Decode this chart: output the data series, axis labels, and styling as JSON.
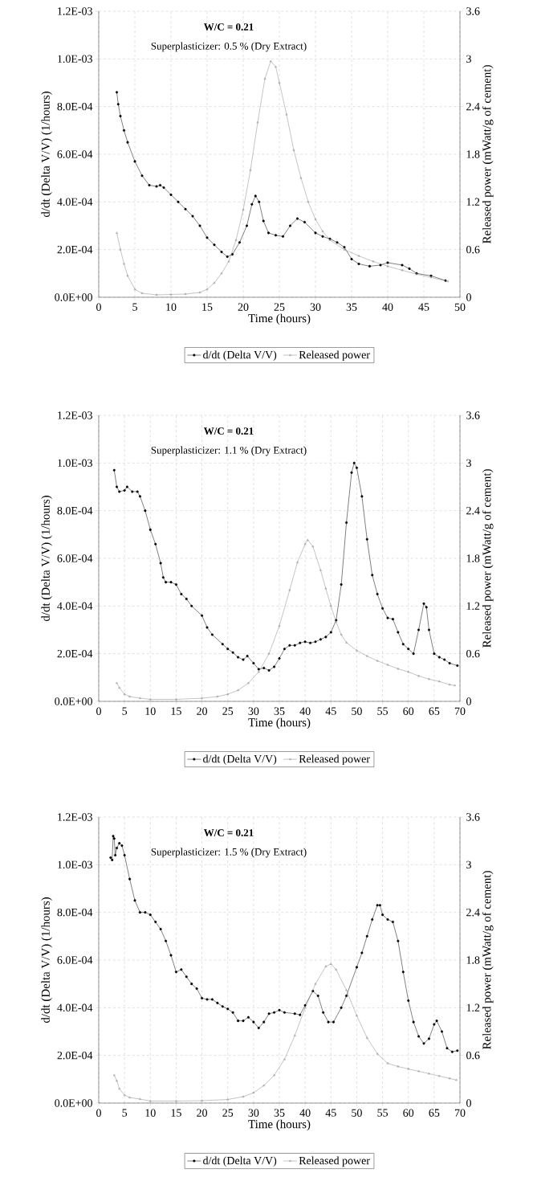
{
  "chart_data": [
    {
      "type": "line",
      "title": "W/C = 0.21",
      "subtitle": "Superplasticizer: 0.5 %  (Dry Extract)",
      "xlabel": "Time  (hours)",
      "ylabel": "d/dt (Delta V/V)  (1/hours)",
      "y2label": "Released power (mWatt/g of cement)",
      "xlim": [
        0,
        50
      ],
      "xticks": [
        0,
        5,
        10,
        15,
        20,
        25,
        30,
        35,
        40,
        45,
        50
      ],
      "ylim": [
        0,
        0.0012
      ],
      "yticks": [
        {
          "value": 0,
          "label": "0.0E+00"
        },
        {
          "value": 0.0002,
          "label": "2.0E-04"
        },
        {
          "value": 0.0004,
          "label": "4.0E-04"
        },
        {
          "value": 0.0006,
          "label": "6.0E-04"
        },
        {
          "value": 0.0008,
          "label": "8.0E-04"
        },
        {
          "value": 0.001,
          "label": "1.0E-03"
        },
        {
          "value": 0.0012,
          "label": "1.2E-03"
        }
      ],
      "y2lim": [
        0,
        3.6
      ],
      "y2ticks": [
        0,
        0.6,
        1.2,
        1.8,
        2.4,
        3,
        3.6
      ],
      "grid": true,
      "legend": "bottom",
      "series": [
        {
          "name": "d/dt (Delta V/V)",
          "color": "#000000",
          "marker": "circle",
          "x": [
            2.5,
            2.7,
            3,
            3.5,
            4,
            5,
            6,
            7,
            8,
            8.5,
            9,
            10,
            11,
            12,
            13,
            14,
            15,
            16,
            17,
            17.8,
            18.5,
            19.5,
            20.5,
            21.2,
            21.7,
            22.2,
            22.8,
            23.5,
            24.5,
            25.5,
            26.5,
            27.5,
            28.5,
            30,
            31,
            32,
            33,
            34,
            35,
            36,
            37.5,
            39,
            40,
            42,
            43,
            44,
            46,
            48
          ],
          "values": [
            0.00086,
            0.00081,
            0.00076,
            0.0007,
            0.00065,
            0.00057,
            0.00051,
            0.00047,
            0.000465,
            0.00047,
            0.00046,
            0.00043,
            0.0004,
            0.00037,
            0.00034,
            0.0003,
            0.00025,
            0.00022,
            0.00019,
            0.00017,
            0.00018,
            0.00023,
            0.0003,
            0.00039,
            0.000425,
            0.0004,
            0.00032,
            0.00027,
            0.00026,
            0.000255,
            0.0003,
            0.00033,
            0.000315,
            0.00027,
            0.000255,
            0.000245,
            0.00023,
            0.00021,
            0.00016,
            0.00014,
            0.00013,
            0.000135,
            0.000145,
            0.000135,
            0.00012,
            0.0001,
            9e-05,
            7e-05
          ]
        },
        {
          "name": "Released power",
          "color": "#888888",
          "marker": "triangle",
          "axis": "y2",
          "x": [
            2.5,
            3,
            3.5,
            4,
            5,
            6,
            8,
            10,
            12,
            14,
            15,
            16,
            17,
            18,
            19,
            20,
            21,
            22,
            23,
            23.8,
            24.5,
            25,
            26,
            27,
            28,
            29,
            30,
            31,
            32,
            34,
            36,
            38,
            40,
            42,
            44,
            46,
            48.3
          ],
          "values": [
            0.81,
            0.6,
            0.42,
            0.27,
            0.1,
            0.05,
            0.03,
            0.035,
            0.04,
            0.06,
            0.1,
            0.18,
            0.3,
            0.45,
            0.72,
            1.1,
            1.6,
            2.2,
            2.75,
            2.97,
            2.9,
            2.7,
            2.3,
            1.85,
            1.5,
            1.2,
            0.98,
            0.83,
            0.72,
            0.6,
            0.52,
            0.45,
            0.39,
            0.34,
            0.29,
            0.25,
            0.2
          ]
        }
      ]
    },
    {
      "type": "line",
      "title": "W/C = 0.21",
      "subtitle": "Superplasticizer: 1.1 %  (Dry Extract)",
      "xlabel": "Time  (hours)",
      "ylabel": "d/dt (Delta V/V)  (1/hours)",
      "y2label": "Released power (mWatt/g of cement)",
      "xlim": [
        0,
        70
      ],
      "xticks": [
        0,
        5,
        10,
        15,
        20,
        25,
        30,
        35,
        40,
        45,
        50,
        55,
        60,
        65,
        70
      ],
      "ylim": [
        0,
        0.0012
      ],
      "yticks": [
        {
          "value": 0,
          "label": "0.0E+00"
        },
        {
          "value": 0.0002,
          "label": "2.0E-04"
        },
        {
          "value": 0.0004,
          "label": "4.0E-04"
        },
        {
          "value": 0.0006,
          "label": "6.0E-04"
        },
        {
          "value": 0.0008,
          "label": "8.0E-04"
        },
        {
          "value": 0.001,
          "label": "1.0E-03"
        },
        {
          "value": 0.0012,
          "label": "1.2E-03"
        }
      ],
      "y2lim": [
        0,
        3.6
      ],
      "y2ticks": [
        0,
        0.6,
        1.2,
        1.8,
        2.4,
        3,
        3.6
      ],
      "grid": true,
      "legend": "bottom",
      "series": [
        {
          "name": "d/dt (Delta V/V)",
          "color": "#000000",
          "marker": "circle",
          "x": [
            3,
            3.5,
            4,
            5,
            5.5,
            6.5,
            7.5,
            8,
            9,
            10,
            11,
            12,
            12.5,
            13,
            14,
            15,
            16,
            17,
            18,
            20,
            21,
            22,
            24,
            25,
            26,
            27,
            28,
            28.8,
            30,
            31,
            32,
            33,
            34,
            35,
            36,
            37,
            38,
            39,
            40,
            41,
            42,
            43,
            44,
            45,
            46,
            47,
            48,
            49,
            49.5,
            50,
            51,
            52,
            53,
            54,
            55,
            56,
            57,
            58,
            59,
            60,
            61,
            62,
            63,
            63.5,
            64,
            65,
            66,
            67,
            68,
            69.5
          ],
          "values": [
            0.00097,
            0.0009,
            0.00088,
            0.000885,
            0.0009,
            0.00088,
            0.00088,
            0.00086,
            0.0008,
            0.00072,
            0.00066,
            0.00058,
            0.00052,
            0.0005,
            0.0005,
            0.00049,
            0.00045,
            0.00043,
            0.0004,
            0.00036,
            0.00031,
            0.00028,
            0.00024,
            0.00022,
            0.000205,
            0.000185,
            0.000175,
            0.00019,
            0.00016,
            0.000135,
            0.00014,
            0.00013,
            0.000145,
            0.00018,
            0.00022,
            0.000235,
            0.000235,
            0.000245,
            0.00025,
            0.000245,
            0.00025,
            0.00026,
            0.00027,
            0.00029,
            0.00034,
            0.00049,
            0.00075,
            0.00096,
            0.001,
            0.00098,
            0.00086,
            0.00068,
            0.00053,
            0.00045,
            0.00039,
            0.00035,
            0.000345,
            0.00029,
            0.00024,
            0.00022,
            0.0002,
            0.0003,
            0.00041,
            0.000395,
            0.0003,
            0.0002,
            0.000185,
            0.000175,
            0.00016,
            0.00015
          ]
        },
        {
          "name": "Released power",
          "color": "#888888",
          "marker": "triangle",
          "axis": "y2",
          "x": [
            3.5,
            4,
            5,
            6,
            8,
            10,
            15,
            20,
            23,
            25,
            27,
            29,
            31,
            33,
            35,
            37,
            38.5,
            40,
            40.5,
            41.5,
            43,
            44,
            45,
            46,
            47,
            48,
            50,
            52,
            54,
            56,
            58,
            60,
            62,
            64,
            66,
            68,
            69
          ],
          "values": [
            0.23,
            0.17,
            0.09,
            0.06,
            0.04,
            0.025,
            0.025,
            0.04,
            0.06,
            0.09,
            0.14,
            0.23,
            0.37,
            0.6,
            0.95,
            1.4,
            1.75,
            1.98,
            2.03,
            1.95,
            1.65,
            1.42,
            1.2,
            1.0,
            0.84,
            0.74,
            0.64,
            0.57,
            0.51,
            0.46,
            0.41,
            0.37,
            0.32,
            0.28,
            0.25,
            0.21,
            0.2
          ]
        }
      ]
    },
    {
      "type": "line",
      "title": "W/C = 0.21",
      "subtitle": "Superplasticizer: 1.5 %  (Dry Extract)",
      "xlabel": "Time  (hours)",
      "ylabel": "d/dt (Delta V/V)  (1/hours)",
      "y2label": "Released power (mWatt/g of cement)",
      "xlim": [
        0,
        70
      ],
      "xticks": [
        0,
        5,
        10,
        15,
        20,
        25,
        30,
        35,
        40,
        45,
        50,
        55,
        60,
        65,
        70
      ],
      "ylim": [
        0,
        0.0012
      ],
      "yticks": [
        {
          "value": 0,
          "label": "0.0E+00"
        },
        {
          "value": 0.0002,
          "label": "2.0E-04"
        },
        {
          "value": 0.0004,
          "label": "4.0E-04"
        },
        {
          "value": 0.0006,
          "label": "6.0E-04"
        },
        {
          "value": 0.0008,
          "label": "8.0E-04"
        },
        {
          "value": 0.001,
          "label": "1.0E-03"
        },
        {
          "value": 0.0012,
          "label": "1.2E-03"
        }
      ],
      "y2lim": [
        0,
        3.6
      ],
      "y2ticks": [
        0,
        0.6,
        1.2,
        1.8,
        2.4,
        3,
        3.6
      ],
      "grid": true,
      "legend": "bottom",
      "series": [
        {
          "name": "d/dt (Delta V/V)",
          "color": "#000000",
          "marker": "circle",
          "x": [
            2.3,
            2.6,
            2.8,
            3,
            3.2,
            3.5,
            4,
            4.5,
            5,
            6,
            7,
            8,
            9,
            10,
            11,
            12,
            13,
            14,
            15,
            16,
            17,
            18,
            19,
            20,
            21,
            22,
            23,
            24,
            25,
            26,
            27,
            28,
            29,
            30,
            31,
            32,
            33,
            34,
            35,
            36,
            38,
            39,
            40,
            41.5,
            42.5,
            43.5,
            44.5,
            45.5,
            47,
            48,
            50,
            51,
            52,
            53,
            54,
            54.5,
            55,
            56,
            57,
            58,
            59,
            60,
            61,
            62,
            63,
            64,
            65,
            65.5,
            66.5,
            67.5,
            68.5,
            69.5
          ],
          "values": [
            0.00103,
            0.00102,
            0.00112,
            0.00111,
            0.00104,
            0.00107,
            0.00109,
            0.00108,
            0.00104,
            0.00094,
            0.00085,
            0.0008,
            0.0008,
            0.00079,
            0.00076,
            0.00073,
            0.00068,
            0.00062,
            0.00055,
            0.00056,
            0.00053,
            0.0005,
            0.00048,
            0.00044,
            0.000435,
            0.000435,
            0.00042,
            0.000405,
            0.000395,
            0.00038,
            0.000345,
            0.000345,
            0.00036,
            0.00034,
            0.000315,
            0.00034,
            0.000375,
            0.00038,
            0.00039,
            0.00038,
            0.000375,
            0.00037,
            0.00041,
            0.00047,
            0.00045,
            0.00038,
            0.00034,
            0.00034,
            0.0004,
            0.00045,
            0.00057,
            0.00063,
            0.0007,
            0.00077,
            0.00083,
            0.00083,
            0.00079,
            0.00077,
            0.00076,
            0.00068,
            0.00055,
            0.00043,
            0.00034,
            0.00028,
            0.00025,
            0.00027,
            0.00033,
            0.000345,
            0.0003,
            0.00023,
            0.000215,
            0.00022
          ]
        },
        {
          "name": "Released power",
          "color": "#888888",
          "marker": "triangle",
          "axis": "y2",
          "x": [
            3,
            3.5,
            4,
            5,
            6,
            8,
            10,
            15,
            20,
            25,
            28,
            30,
            32,
            34,
            36,
            38,
            40,
            42,
            44,
            45,
            46,
            48,
            50,
            52,
            54,
            56,
            58,
            60,
            62,
            64,
            66,
            68,
            69.3
          ],
          "values": [
            0.35,
            0.28,
            0.18,
            0.1,
            0.07,
            0.05,
            0.025,
            0.025,
            0.03,
            0.045,
            0.08,
            0.13,
            0.22,
            0.35,
            0.55,
            0.85,
            1.2,
            1.5,
            1.72,
            1.75,
            1.68,
            1.42,
            1.1,
            0.82,
            0.62,
            0.5,
            0.46,
            0.43,
            0.4,
            0.37,
            0.34,
            0.31,
            0.29
          ]
        }
      ]
    }
  ]
}
